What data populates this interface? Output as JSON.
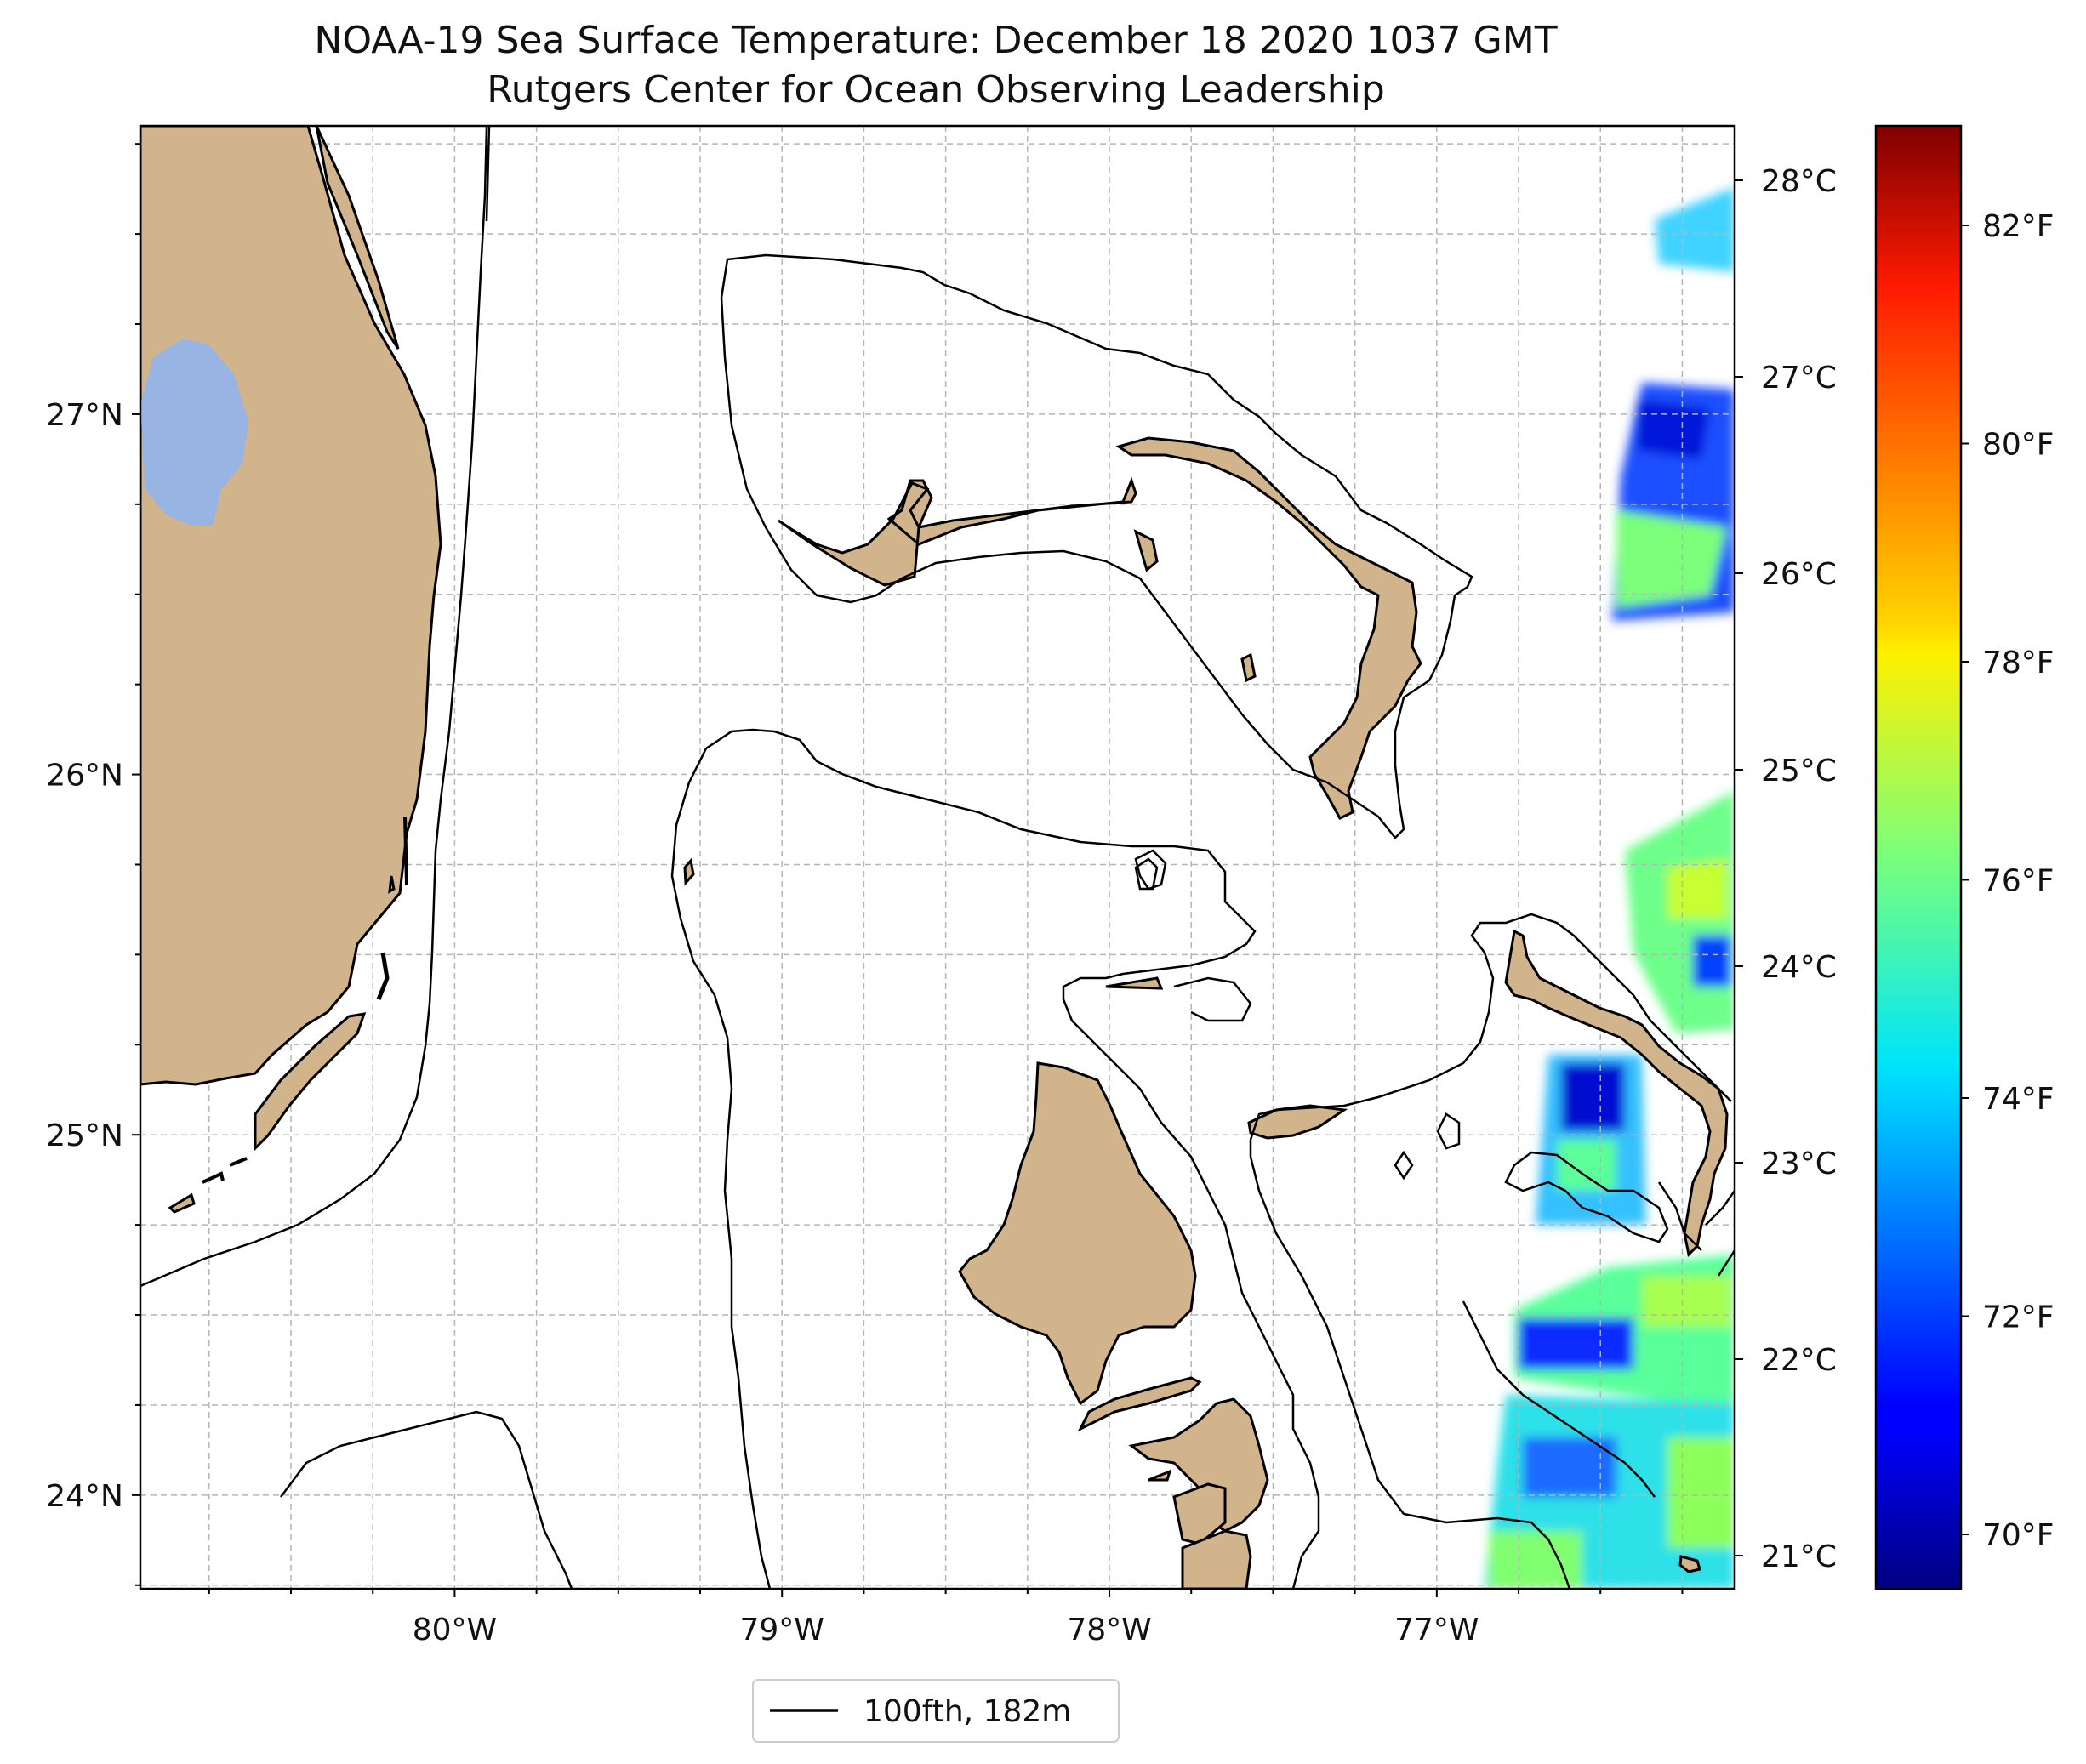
{
  "title": {
    "line1": "NOAA-19 Sea Surface Temperature: December 18 2020 1037 GMT",
    "line2": "Rutgers Center for Ocean Observing Leadership"
  },
  "map": {
    "lon_range": [
      -80.96,
      -76.09
    ],
    "lat_range": [
      23.74,
      27.8
    ],
    "lon_ticks": [
      {
        "value": -80,
        "label": "80°W"
      },
      {
        "value": -79,
        "label": "79°W"
      },
      {
        "value": -78,
        "label": "78°W"
      },
      {
        "value": -77,
        "label": "77°W"
      }
    ],
    "lat_ticks": [
      {
        "value": 24,
        "label": "24°N"
      },
      {
        "value": 25,
        "label": "25°N"
      },
      {
        "value": 26,
        "label": "26°N"
      },
      {
        "value": 27,
        "label": "27°N"
      }
    ],
    "gridlines": true,
    "land_color": "#d2b48c",
    "lake_color": "#98b4e2",
    "contour_color": "#000000"
  },
  "colorbar": {
    "colormap": "jet",
    "celsius_labels": [
      "28°C",
      "27°C",
      "26°C",
      "25°C",
      "24°C",
      "23°C",
      "22°C",
      "21°C"
    ],
    "fahrenheit_labels": [
      "82°F",
      "80°F",
      "78°F",
      "76°F",
      "74°F",
      "72°F",
      "70°F"
    ]
  },
  "legend": {
    "label": "100fth, 182m",
    "placement": "bottom-center"
  }
}
